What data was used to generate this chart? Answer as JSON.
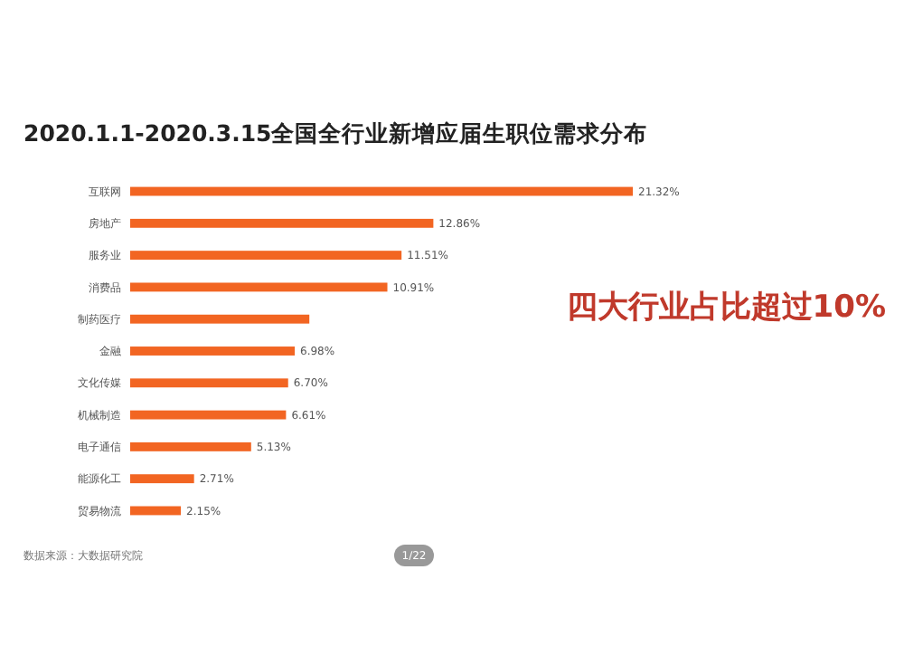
{
  "chart_data": {
    "type": "bar",
    "orientation": "horizontal",
    "title": "2020.1.1-2020.3.15全国全行业新增应届生职位需求分布",
    "categories": [
      "互联网",
      "房地产",
      "服务业",
      "消费品",
      "制药医疗",
      "金融",
      "文化传媒",
      "机械制造",
      "电子通信",
      "能源化工",
      "贸易物流"
    ],
    "values": [
      21.32,
      12.86,
      11.51,
      10.91,
      7.6,
      6.98,
      6.7,
      6.61,
      5.13,
      2.71,
      2.15
    ],
    "value_labels": [
      "21.32%",
      "12.86%",
      "11.51%",
      "10.91%",
      null,
      "6.98%",
      "6.70%",
      "6.61%",
      "5.13%",
      "2.71%",
      "2.15%"
    ],
    "color": "#f26522",
    "tick_labels": "y",
    "annotations": [
      "四大行业占比超过10%",
      "数据来源：大数据研究院",
      "1/22"
    ]
  }
}
